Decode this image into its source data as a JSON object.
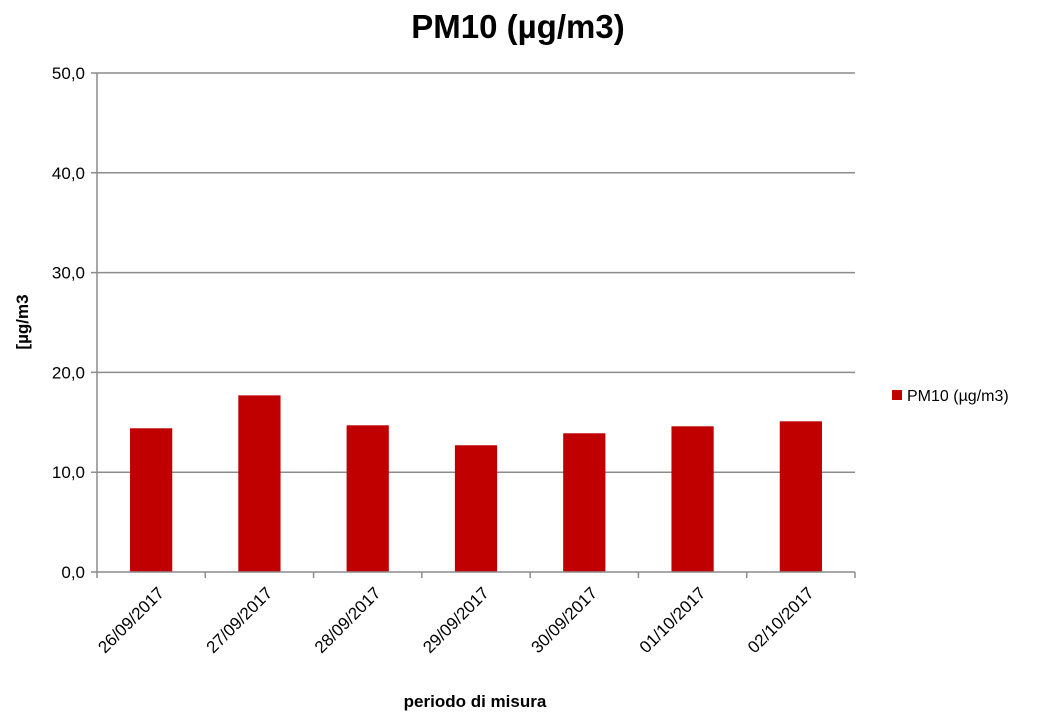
{
  "chart_data": {
    "type": "bar",
    "title": "PM10 (µg/m3)",
    "xlabel": "periodo di misura",
    "ylabel": "[µg/m3",
    "categories": [
      "26/09/2017",
      "27/09/2017",
      "28/09/2017",
      "29/09/2017",
      "30/09/2017",
      "01/10/2017",
      "02/10/2017"
    ],
    "series": [
      {
        "name": "PM10 (µg/m3)",
        "color": "#c00000",
        "values": [
          14.4,
          17.7,
          14.7,
          12.7,
          13.9,
          14.6,
          15.1
        ]
      }
    ],
    "ylim": [
      0,
      50
    ],
    "yticks": [
      0,
      10,
      20,
      30,
      40,
      50
    ],
    "ytick_labels": [
      "0,0",
      "10,0",
      "20,0",
      "30,0",
      "40,0",
      "50,0"
    ],
    "grid": true,
    "legend_position": "right"
  }
}
